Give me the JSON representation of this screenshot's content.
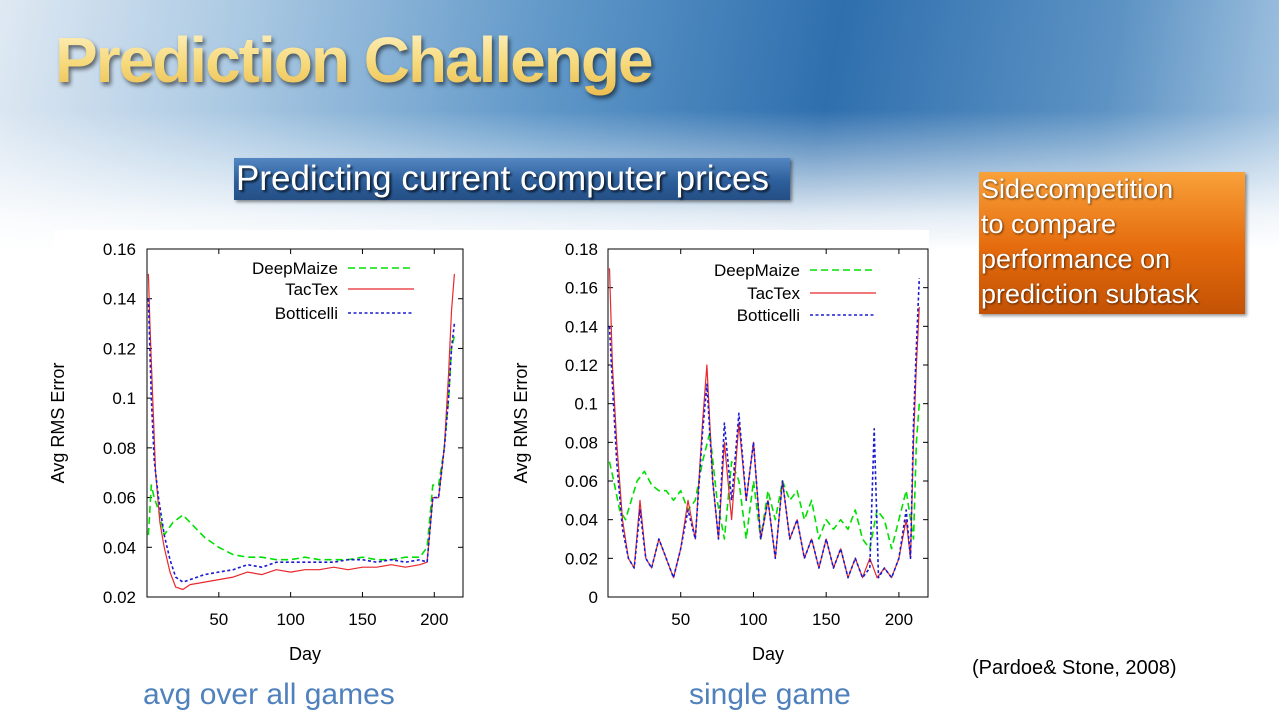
{
  "slide": {
    "title": "Prediction Challenge",
    "subtitle": "Predicting current computer prices",
    "side_note": [
      "Sidecompetition",
      "to compare",
      "performance on",
      "prediction subtask"
    ],
    "captions": [
      "avg over all games",
      "single game"
    ],
    "citation": "(Pardoe& Stone, 2008)"
  },
  "colors": {
    "DeepMaize": "#00e000",
    "TacTex": "#e8282c",
    "Botticelli": "#1a1ad0",
    "caption": "#4f81bd",
    "subtitle_box": "#2d5f9c",
    "side_box": "#e46a0c"
  },
  "chart_data": [
    {
      "type": "line",
      "xlabel": "Day",
      "ylabel": "Avg RMS Error",
      "xlim": [
        0,
        220
      ],
      "ylim": [
        0.02,
        0.16
      ],
      "xticks": [
        50,
        100,
        150,
        200
      ],
      "yticks": [
        0.02,
        0.04,
        0.06,
        0.08,
        0.1,
        0.12,
        0.14,
        0.16
      ],
      "ytick_labels": [
        "0.02",
        "0.04",
        "0.06",
        "0.08",
        "0.1",
        "0.12",
        "0.14",
        "0.16"
      ],
      "legend_position": "top-right",
      "series": [
        {
          "name": "DeepMaize",
          "style": "dashed",
          "x": [
            1,
            3,
            5,
            8,
            12,
            18,
            25,
            30,
            40,
            50,
            60,
            70,
            80,
            90,
            100,
            110,
            120,
            130,
            140,
            150,
            160,
            170,
            180,
            190,
            195,
            199,
            203,
            207,
            210,
            212,
            214
          ],
          "y": [
            0.045,
            0.065,
            0.06,
            0.055,
            0.045,
            0.05,
            0.053,
            0.05,
            0.044,
            0.04,
            0.037,
            0.036,
            0.036,
            0.035,
            0.035,
            0.036,
            0.035,
            0.035,
            0.035,
            0.036,
            0.035,
            0.035,
            0.036,
            0.036,
            0.04,
            0.065,
            0.065,
            0.08,
            0.1,
            0.12,
            0.125
          ]
        },
        {
          "name": "TacTex",
          "style": "solid",
          "x": [
            1,
            2,
            4,
            6,
            9,
            12,
            16,
            20,
            25,
            30,
            40,
            50,
            60,
            70,
            80,
            90,
            100,
            110,
            120,
            130,
            140,
            150,
            160,
            170,
            180,
            190,
            195,
            199,
            203,
            207,
            210,
            212,
            214
          ],
          "y": [
            0.15,
            0.13,
            0.1,
            0.07,
            0.05,
            0.04,
            0.03,
            0.024,
            0.023,
            0.025,
            0.026,
            0.027,
            0.028,
            0.03,
            0.029,
            0.031,
            0.03,
            0.031,
            0.031,
            0.032,
            0.031,
            0.032,
            0.032,
            0.033,
            0.032,
            0.033,
            0.034,
            0.06,
            0.06,
            0.08,
            0.11,
            0.135,
            0.15
          ]
        },
        {
          "name": "Botticelli",
          "style": "dotted",
          "x": [
            1,
            3,
            5,
            8,
            12,
            16,
            20,
            25,
            30,
            40,
            50,
            60,
            70,
            80,
            90,
            100,
            110,
            120,
            130,
            140,
            150,
            160,
            170,
            180,
            190,
            195,
            199,
            203,
            207,
            210,
            212,
            214
          ],
          "y": [
            0.14,
            0.1,
            0.075,
            0.06,
            0.045,
            0.035,
            0.028,
            0.026,
            0.027,
            0.029,
            0.03,
            0.031,
            0.033,
            0.032,
            0.034,
            0.034,
            0.034,
            0.034,
            0.034,
            0.035,
            0.035,
            0.034,
            0.035,
            0.034,
            0.035,
            0.034,
            0.06,
            0.06,
            0.08,
            0.1,
            0.12,
            0.13
          ]
        }
      ]
    },
    {
      "type": "line",
      "xlabel": "Day",
      "ylabel": "Avg RMS Error",
      "xlim": [
        0,
        220
      ],
      "ylim": [
        0,
        0.18
      ],
      "xticks": [
        50,
        100,
        150,
        200
      ],
      "yticks": [
        0,
        0.02,
        0.04,
        0.06,
        0.08,
        0.1,
        0.12,
        0.14,
        0.16,
        0.18
      ],
      "ytick_labels": [
        "0",
        "0.02",
        "0.04",
        "0.06",
        "0.08",
        "0.1",
        "0.12",
        "0.14",
        "0.16",
        "0.18"
      ],
      "legend_position": "top-right",
      "series": [
        {
          "name": "DeepMaize",
          "style": "dashed",
          "x": [
            1,
            4,
            8,
            12,
            16,
            20,
            25,
            30,
            35,
            40,
            45,
            50,
            55,
            60,
            65,
            70,
            75,
            80,
            85,
            90,
            95,
            100,
            105,
            110,
            115,
            120,
            125,
            130,
            135,
            140,
            145,
            150,
            155,
            160,
            165,
            170,
            175,
            180,
            185,
            190,
            195,
            200,
            205,
            210,
            212,
            214
          ],
          "y": [
            0.07,
            0.06,
            0.045,
            0.04,
            0.05,
            0.06,
            0.065,
            0.058,
            0.055,
            0.055,
            0.05,
            0.055,
            0.045,
            0.05,
            0.07,
            0.085,
            0.05,
            0.03,
            0.07,
            0.06,
            0.03,
            0.06,
            0.03,
            0.055,
            0.04,
            0.06,
            0.05,
            0.055,
            0.04,
            0.05,
            0.03,
            0.04,
            0.035,
            0.04,
            0.035,
            0.045,
            0.03,
            0.025,
            0.045,
            0.04,
            0.025,
            0.04,
            0.055,
            0.03,
            0.08,
            0.1
          ]
        },
        {
          "name": "TacTex",
          "style": "solid",
          "x": [
            1,
            3,
            6,
            10,
            14,
            18,
            22,
            26,
            30,
            35,
            40,
            45,
            50,
            55,
            60,
            65,
            68,
            72,
            76,
            80,
            85,
            90,
            95,
            100,
            105,
            110,
            115,
            120,
            125,
            130,
            135,
            140,
            145,
            150,
            155,
            160,
            165,
            170,
            175,
            180,
            185,
            190,
            195,
            200,
            205,
            208,
            210,
            212,
            214
          ],
          "y": [
            0.17,
            0.12,
            0.08,
            0.04,
            0.02,
            0.015,
            0.05,
            0.02,
            0.015,
            0.03,
            0.02,
            0.01,
            0.025,
            0.05,
            0.03,
            0.09,
            0.12,
            0.06,
            0.03,
            0.08,
            0.04,
            0.09,
            0.05,
            0.08,
            0.03,
            0.05,
            0.02,
            0.06,
            0.03,
            0.04,
            0.02,
            0.03,
            0.015,
            0.03,
            0.015,
            0.025,
            0.01,
            0.02,
            0.01,
            0.02,
            0.01,
            0.015,
            0.01,
            0.02,
            0.04,
            0.02,
            0.08,
            0.12,
            0.15
          ]
        },
        {
          "name": "Botticelli",
          "style": "dotted",
          "x": [
            1,
            3,
            6,
            10,
            14,
            18,
            22,
            26,
            30,
            35,
            40,
            45,
            50,
            55,
            60,
            65,
            68,
            72,
            76,
            80,
            85,
            90,
            95,
            100,
            105,
            110,
            115,
            120,
            125,
            130,
            135,
            140,
            145,
            150,
            155,
            160,
            165,
            170,
            175,
            180,
            183,
            186,
            190,
            195,
            200,
            205,
            208,
            210,
            212,
            214
          ],
          "y": [
            0.14,
            0.11,
            0.07,
            0.035,
            0.02,
            0.015,
            0.045,
            0.02,
            0.015,
            0.03,
            0.02,
            0.01,
            0.025,
            0.045,
            0.03,
            0.085,
            0.11,
            0.06,
            0.03,
            0.09,
            0.05,
            0.095,
            0.05,
            0.08,
            0.03,
            0.05,
            0.02,
            0.06,
            0.03,
            0.04,
            0.02,
            0.03,
            0.015,
            0.03,
            0.015,
            0.025,
            0.01,
            0.02,
            0.01,
            0.015,
            0.087,
            0.01,
            0.015,
            0.01,
            0.02,
            0.045,
            0.02,
            0.09,
            0.13,
            0.165
          ]
        }
      ]
    }
  ]
}
